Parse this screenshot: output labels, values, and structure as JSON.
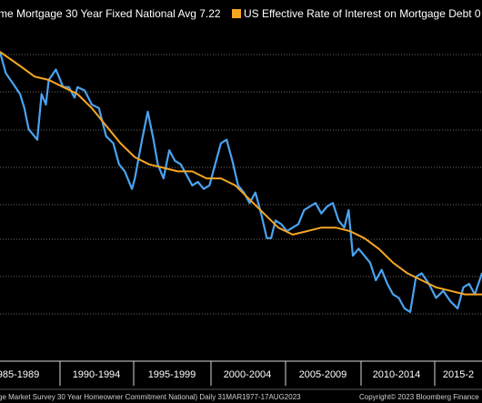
{
  "legend": {
    "items": [
      {
        "label": "me Mortgage 30 Year Fixed National Avg 7.22",
        "color": "#4aa3f0"
      },
      {
        "label": "US Effective Rate of Interest on Mortgage Debt 0",
        "color": "#f5a623"
      }
    ]
  },
  "footer": {
    "left": "ge Market Survey 30 Year Homeowner Commitment National)  Daily 31MAR1977-17AUG2023",
    "right": "Copyright© 2023 Bloomberg Finance"
  },
  "chart_data": {
    "type": "line",
    "x_tick_labels": [
      "985-1989",
      "1990-1994",
      "1995-1999",
      "2000-2004",
      "2005-2009",
      "2010-2014",
      "2015-2"
    ],
    "xlim": [
      1984.6,
      2018.2
    ],
    "ylim": [
      2.0,
      11.5
    ],
    "grid": true,
    "legend_position": "top",
    "series": [
      {
        "name": "me Mortgage 30 Year Fixed National Avg 7.22",
        "color": "#4aa3f0",
        "x": [
          1984.6,
          1985.0,
          1985.5,
          1986.0,
          1986.3,
          1986.6,
          1987.0,
          1987.2,
          1987.5,
          1987.8,
          1988.0,
          1988.5,
          1989.0,
          1989.4,
          1989.8,
          1990.0,
          1990.5,
          1991.0,
          1991.5,
          1992.0,
          1992.5,
          1992.9,
          1993.3,
          1993.8,
          1994.0,
          1994.5,
          1994.9,
          1995.3,
          1995.6,
          1996.0,
          1996.4,
          1996.8,
          1997.2,
          1997.6,
          1998.0,
          1998.4,
          1998.8,
          1999.2,
          1999.6,
          2000.0,
          2000.4,
          2000.8,
          2001.2,
          2001.6,
          2002.0,
          2002.4,
          2002.8,
          2003.2,
          2003.5,
          2003.8,
          2004.2,
          2004.6,
          2005.0,
          2005.4,
          2005.8,
          2006.2,
          2006.6,
          2007.0,
          2007.4,
          2007.8,
          2008.2,
          2008.6,
          2008.9,
          2009.2,
          2009.6,
          2010.0,
          2010.4,
          2010.8,
          2011.2,
          2011.6,
          2012.0,
          2012.4,
          2012.8,
          2013.2,
          2013.6,
          2014.0,
          2014.5,
          2015.0,
          2015.5,
          2016.0,
          2016.5,
          2016.9,
          2017.3,
          2017.7,
          2018.2
        ],
        "values": [
          10.8,
          10.2,
          9.9,
          9.6,
          9.2,
          8.6,
          8.4,
          8.3,
          9.6,
          9.3,
          10.0,
          10.3,
          9.8,
          9.8,
          9.5,
          9.8,
          9.7,
          9.3,
          9.2,
          8.4,
          8.2,
          7.6,
          7.4,
          6.9,
          7.2,
          8.3,
          9.1,
          8.3,
          7.6,
          7.2,
          8.0,
          7.7,
          7.6,
          7.3,
          7.0,
          7.1,
          6.9,
          7.0,
          7.6,
          8.2,
          8.3,
          7.7,
          7.0,
          6.8,
          6.5,
          6.8,
          6.2,
          5.5,
          5.5,
          6.0,
          5.9,
          5.7,
          5.8,
          5.9,
          6.3,
          6.4,
          6.5,
          6.2,
          6.4,
          6.5,
          6.0,
          5.8,
          6.3,
          5.0,
          5.2,
          5.0,
          4.8,
          4.3,
          4.6,
          4.2,
          3.9,
          3.8,
          3.5,
          3.4,
          4.4,
          4.5,
          4.2,
          3.8,
          4.0,
          3.7,
          3.5,
          4.1,
          4.2,
          3.9,
          4.5
        ]
      },
      {
        "name": "US Effective Rate of Interest on Mortgage Debt 0",
        "color": "#f5a623",
        "x": [
          1984.6,
          1986.0,
          1987.0,
          1988.0,
          1989.0,
          1990.0,
          1991.0,
          1992.0,
          1993.0,
          1994.0,
          1995.0,
          1996.0,
          1997.0,
          1998.0,
          1999.0,
          2000.0,
          2001.0,
          2002.0,
          2003.0,
          2004.0,
          2005.0,
          2006.0,
          2007.0,
          2008.0,
          2009.0,
          2010.0,
          2011.0,
          2012.0,
          2013.0,
          2014.0,
          2015.0,
          2016.0,
          2017.0,
          2018.2
        ],
        "values": [
          10.8,
          10.4,
          10.1,
          10.0,
          9.8,
          9.6,
          9.2,
          8.7,
          8.2,
          7.8,
          7.6,
          7.5,
          7.4,
          7.4,
          7.2,
          7.2,
          7.0,
          6.6,
          6.2,
          5.8,
          5.6,
          5.7,
          5.8,
          5.8,
          5.7,
          5.5,
          5.2,
          4.8,
          4.5,
          4.3,
          4.1,
          4.0,
          3.9,
          3.9
        ]
      }
    ]
  }
}
